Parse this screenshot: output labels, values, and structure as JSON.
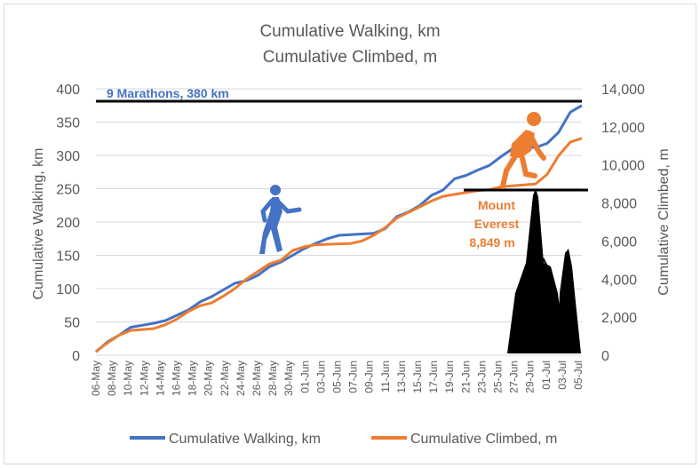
{
  "chart_data": {
    "type": "line",
    "title": [
      "Cumulative Walking, km",
      "Cumulative Climbed, m"
    ],
    "ylabel_left": "Cumulative Walking, km",
    "ylabel_right": "Cumulative Climbed, m",
    "ylim_left": [
      0,
      400
    ],
    "ylim_right": [
      0,
      14000
    ],
    "yticks_left": [
      "0",
      "50",
      "100",
      "150",
      "200",
      "250",
      "300",
      "350",
      "400"
    ],
    "yticks_right": [
      "0",
      "2,000",
      "4,000",
      "6,000",
      "8,000",
      "10,000",
      "12,000",
      "14,000"
    ],
    "x_tick_labels": [
      "06-May",
      "08-May",
      "10-May",
      "12-May",
      "14-May",
      "16-May",
      "18-May",
      "20-May",
      "22-May",
      "24-May",
      "26-May",
      "28-May",
      "30-May",
      "01-Jun",
      "03-Jun",
      "05-Jun",
      "07-Jun",
      "09-Jun",
      "11-Jun",
      "13-Jun",
      "15-Jun",
      "17-Jun",
      "19-Jun",
      "21-Jun",
      "23-Jun",
      "25-Jun",
      "27-Jun",
      "29-Jun",
      "01-Jul",
      "03-Jul",
      "05-Jul"
    ],
    "grid": true,
    "legend": "bottom",
    "series": [
      {
        "name": "Cumulative Walking, km",
        "axis": "left",
        "color": "#4472c4",
        "values": [
          5,
          20,
          30,
          42,
          45,
          48,
          52,
          60,
          68,
          80,
          88,
          98,
          108,
          112,
          120,
          133,
          140,
          150,
          160,
          168,
          175,
          180,
          181,
          182,
          183,
          190,
          208,
          215,
          225,
          240,
          248,
          265,
          270,
          278,
          285,
          298,
          310,
          312,
          312,
          318,
          335,
          365,
          375
        ]
      },
      {
        "name": "Cumulative Climbed, m",
        "axis": "right",
        "color": "#ed7d31",
        "values": [
          200,
          650,
          1050,
          1300,
          1350,
          1400,
          1600,
          1900,
          2300,
          2600,
          2750,
          3100,
          3500,
          4000,
          4400,
          4800,
          5000,
          5500,
          5700,
          5800,
          5830,
          5850,
          5870,
          6000,
          6300,
          6700,
          7200,
          7500,
          7800,
          8100,
          8350,
          8450,
          8550,
          8650,
          8700,
          8850,
          8900,
          8950,
          9000,
          9500,
          10500,
          11200,
          11400
        ]
      }
    ],
    "annotations": {
      "marathons_label": "9 Marathons, 380 km",
      "marathons_value_km": 380,
      "everest_label": [
        "Mount",
        "Everest",
        "8,849 m"
      ],
      "everest_value_m": 8849
    },
    "colors": {
      "walking": "#4472c4",
      "climbed": "#ed7d31",
      "reference_line": "#000000",
      "grid": "#d9d9d9",
      "text": "#595959"
    }
  }
}
